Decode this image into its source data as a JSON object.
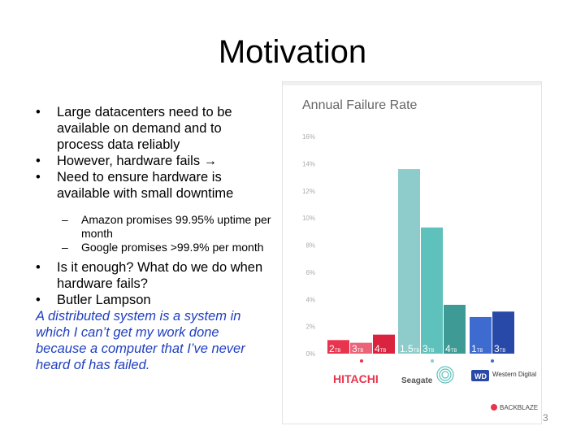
{
  "slide": {
    "title": "Motivation",
    "page_number": "3",
    "bullets": {
      "b1": "Large datacenters need to be available on demand and to process data reliably",
      "b2": "However, hardware fails →",
      "b3": "Need to ensure hardware is available with small downtime",
      "s1": "Amazon promises 99.95% uptime per month",
      "s2": "Google promises >99.9% per month",
      "b4": "Is it enough? What do we do when hardware fails?",
      "b5": "Butler Lampson"
    },
    "bullet_glyph": "•",
    "dash_glyph": "–",
    "quote": "A distributed system is a system in which I can’t get my work done because a computer that I’ve never heard of has failed."
  },
  "chart_data": {
    "type": "bar",
    "title": "Annual Failure Rate",
    "y_ticks": [
      "0%",
      "2%",
      "4%",
      "6%",
      "8%",
      "10%",
      "12%",
      "14%",
      "16%"
    ],
    "ylim": [
      0,
      16
    ],
    "grid": false,
    "series": [
      {
        "name": "HITACHI",
        "categories": [
          "2TB",
          "3TB",
          "4TB"
        ],
        "values": [
          1.0,
          0.8,
          1.4
        ],
        "colors": [
          "#e8344e",
          "#ec6378",
          "#d9233f"
        ]
      },
      {
        "name": "Seagate",
        "categories": [
          "1.5TB",
          "3TB",
          "4TB"
        ],
        "values": [
          13.6,
          9.3,
          3.6
        ],
        "colors": [
          "#8ecccc",
          "#5fc1bb",
          "#3e9a95"
        ]
      },
      {
        "name": "Western Digital",
        "categories": [
          "1TB",
          "3TB"
        ],
        "values": [
          2.7,
          3.1
        ],
        "colors": [
          "#3d6bd0",
          "#2849a8"
        ]
      }
    ],
    "brand": "BACKBLAZE"
  }
}
